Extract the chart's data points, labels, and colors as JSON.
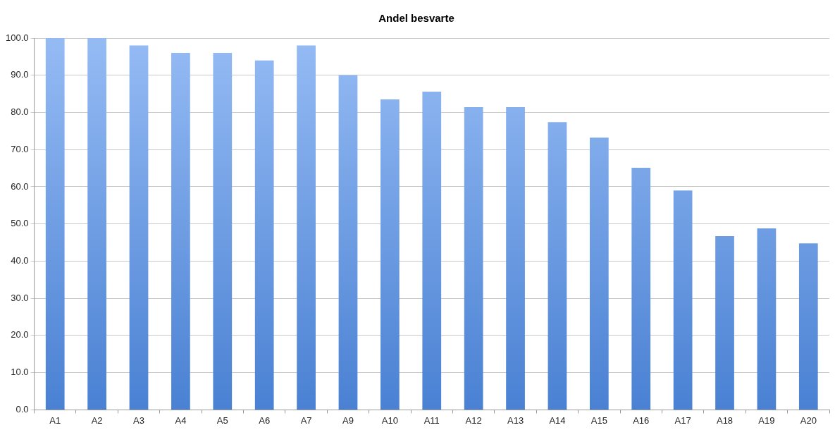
{
  "chart_data": {
    "type": "bar",
    "title": "Andel besvarte",
    "categories": [
      "A1",
      "A2",
      "A3",
      "A4",
      "A5",
      "A6",
      "A7",
      "A9",
      "A10",
      "A11",
      "A12",
      "A13",
      "A14",
      "A15",
      "A16",
      "A17",
      "A18",
      "A19",
      "A20"
    ],
    "values": [
      100,
      100,
      98,
      96,
      96,
      94,
      98,
      90,
      83.5,
      85.6,
      81.4,
      81.4,
      77.4,
      73.2,
      65.1,
      59,
      46.7,
      48.8,
      44.8
    ],
    "color": "#6b9ee8",
    "ylim": [
      0,
      100
    ],
    "yticks": [
      {
        "value": 0,
        "label": "0.0"
      },
      {
        "value": 10,
        "label": "10.0"
      },
      {
        "value": 20,
        "label": "20.0"
      },
      {
        "value": 30,
        "label": "30.0"
      },
      {
        "value": 40,
        "label": "40.0"
      },
      {
        "value": 50,
        "label": "50.0"
      },
      {
        "value": 60,
        "label": "60.0"
      },
      {
        "value": 70,
        "label": "70.0"
      },
      {
        "value": 80,
        "label": "80.0"
      },
      {
        "value": 90,
        "label": "90.0"
      },
      {
        "value": 100,
        "label": "100.0"
      }
    ],
    "grid": "y"
  }
}
